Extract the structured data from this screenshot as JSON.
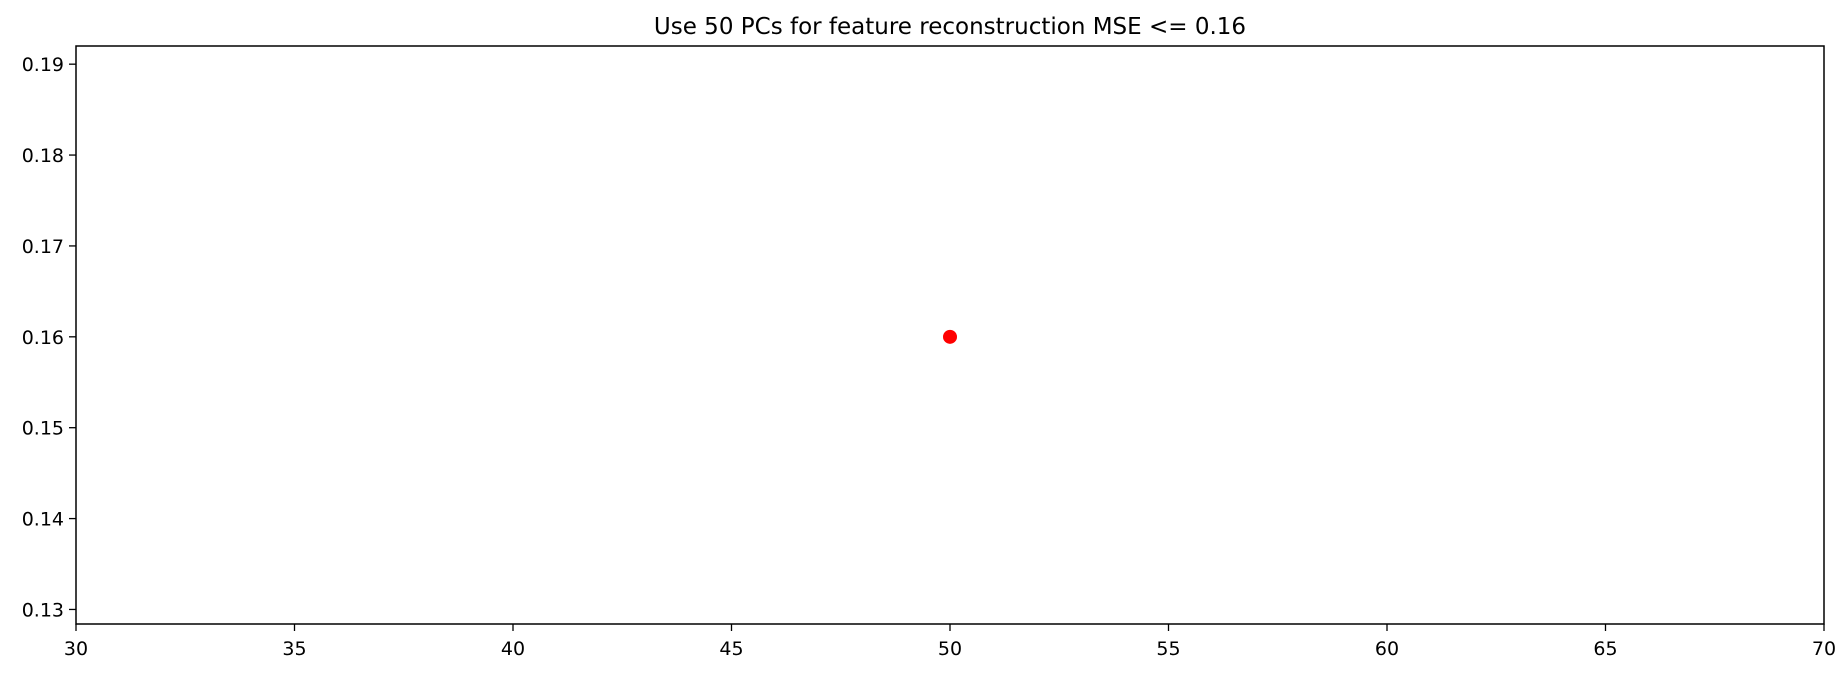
{
  "chart_data": {
    "type": "scatter",
    "title": "Use 50 PCs for feature reconstruction MSE <= 0.16",
    "xlabel": "",
    "ylabel": "",
    "xlim": [
      30,
      70
    ],
    "ylim": [
      0.1284,
      0.192
    ],
    "x_ticks": [
      30,
      35,
      40,
      45,
      50,
      55,
      60,
      65,
      70
    ],
    "x_tick_labels": [
      "30",
      "35",
      "40",
      "45",
      "50",
      "55",
      "60",
      "65",
      "70"
    ],
    "y_ticks": [
      0.13,
      0.14,
      0.15,
      0.16,
      0.17,
      0.18,
      0.19
    ],
    "y_tick_labels": [
      "0.13",
      "0.14",
      "0.15",
      "0.16",
      "0.17",
      "0.18",
      "0.19"
    ],
    "grid": false,
    "legend": "none",
    "points": [
      {
        "x": 50,
        "y": 0.16,
        "color": "#ff0000"
      }
    ]
  }
}
